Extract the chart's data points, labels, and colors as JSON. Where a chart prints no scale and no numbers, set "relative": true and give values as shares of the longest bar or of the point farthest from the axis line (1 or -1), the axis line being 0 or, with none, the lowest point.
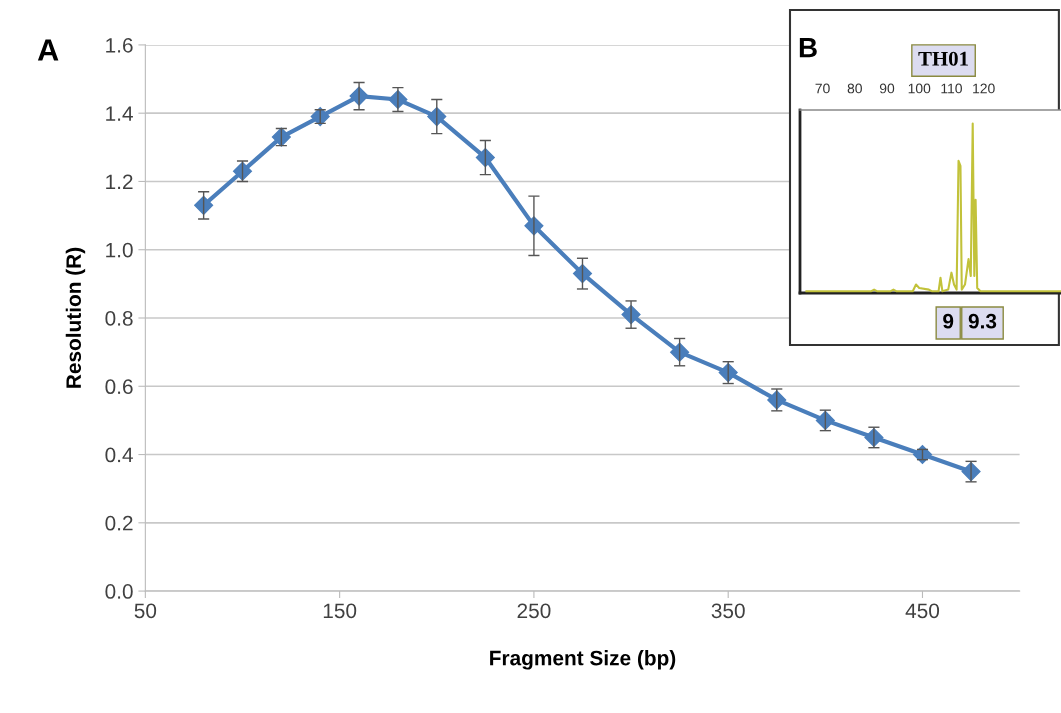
{
  "chart_data": [
    {
      "type": "line",
      "xlabel": "Fragment Size (bp)",
      "ylabel": "Resolution (R)",
      "annotations": [
        "A"
      ],
      "x": [
        80,
        100,
        120,
        140,
        160,
        180,
        200,
        225,
        250,
        275,
        300,
        325,
        350,
        375,
        400,
        425,
        450,
        475
      ],
      "series": [
        {
          "color": "#4a7ebb",
          "values": [
            1.13,
            1.23,
            1.33,
            1.39,
            1.45,
            1.44,
            1.39,
            1.27,
            1.07,
            0.93,
            0.81,
            0.7,
            0.64,
            0.56,
            0.5,
            0.45,
            0.4,
            0.35
          ],
          "errors": [
            0.04,
            0.03,
            0.025,
            0.02,
            0.04,
            0.035,
            0.05,
            0.05,
            0.087,
            0.045,
            0.04,
            0.04,
            0.032,
            0.032,
            0.03,
            0.03,
            0.015,
            0.03
          ]
        }
      ],
      "xlim": [
        50,
        500
      ],
      "xticks": [
        50,
        150,
        250,
        350,
        450
      ],
      "ylim": [
        0,
        1.6
      ],
      "yticks": [
        {
          "value": 0,
          "label": "0.0"
        },
        0.2,
        0.4,
        0.6,
        0.8,
        {
          "value": 1,
          "label": "1.0"
        },
        1.2,
        1.4,
        1.6
      ],
      "grid": "y",
      "marker": "diamond",
      "line_style": "solid"
    },
    {
      "type": "line",
      "title": "TH01",
      "annotations": [
        "B",
        "9",
        "9.3"
      ],
      "relative": true,
      "xlim": [
        63,
        144
      ],
      "xticks": [
        70,
        80,
        90,
        100,
        110,
        120
      ],
      "series": [
        {
          "color": "#c2c23a",
          "x": [
            65,
            85,
            86,
            87,
            91,
            92,
            93,
            98,
            99,
            100,
            103,
            104,
            106,
            106.6,
            107.2,
            109,
            110,
            110.8,
            111.6,
            112.2,
            112.8,
            113.2,
            114.2,
            115.3,
            116,
            116.6,
            117.1,
            117.5,
            118,
            119,
            144
          ],
          "values": [
            0.01,
            0.01,
            0.02,
            0.01,
            0.01,
            0.02,
            0.01,
            0.01,
            0.05,
            0.03,
            0.02,
            0.01,
            0.01,
            0.09,
            0.01,
            0.02,
            0.12,
            0.05,
            0.02,
            0.78,
            0.75,
            0.02,
            0.05,
            0.2,
            0.1,
            1.0,
            0.1,
            0.55,
            0.03,
            0.01,
            0.01
          ]
        }
      ],
      "marker": "none",
      "line_style": "solid",
      "grid": false
    }
  ]
}
